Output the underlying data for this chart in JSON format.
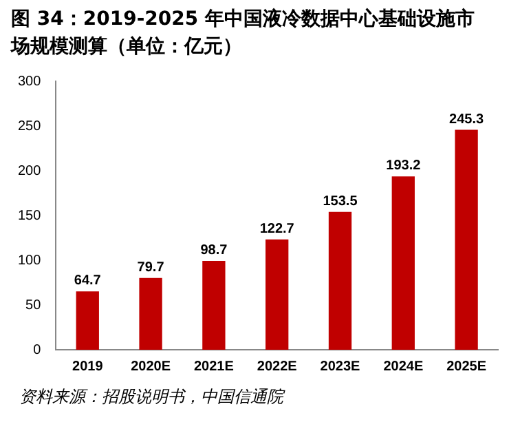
{
  "chart_data": {
    "type": "bar",
    "title": "图 34：2019-2025 年中国液冷数据中心基础设施市场规模测算（单位：亿元）",
    "categories": [
      "2019",
      "2020E",
      "2021E",
      "2022E",
      "2023E",
      "2024E",
      "2025E"
    ],
    "values": [
      64.7,
      79.7,
      98.7,
      122.7,
      153.5,
      193.2,
      245.3
    ],
    "color": "#c00000",
    "ylim": [
      0,
      300
    ],
    "yticks": [
      0,
      50,
      100,
      150,
      200,
      250,
      300
    ],
    "grid": false,
    "data_labels": true,
    "annotations": [
      "资料来源：招股说明书，中国信通院"
    ]
  }
}
